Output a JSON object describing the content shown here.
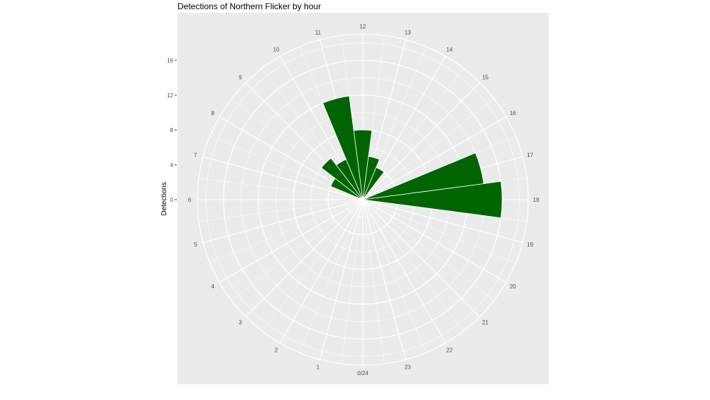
{
  "chart_data": {
    "type": "bar",
    "coord": "polar",
    "title": "Detections of Northern Flicker by hour",
    "xlabel": "",
    "ylabel": "Detections",
    "bar_color": "#006400",
    "panel_color": "#ebebeb",
    "grid_color": "#ffffff",
    "grid": true,
    "ylim": [
      0,
      19
    ],
    "y_ticks": [
      0,
      4,
      8,
      12,
      16
    ],
    "y_tick_labels": [
      "0",
      "4",
      "8",
      "12",
      "16"
    ],
    "hour_labels": [
      "0/24",
      "1",
      "2",
      "3",
      "4",
      "5",
      "6",
      "7",
      "8",
      "9",
      "10",
      "11",
      "12",
      "13",
      "14",
      "15",
      "16",
      "17",
      "18",
      "19",
      "20",
      "21",
      "22",
      "23"
    ],
    "categories": [
      0,
      1,
      2,
      3,
      4,
      5,
      6,
      7,
      8,
      9,
      10,
      11,
      12,
      13,
      14,
      15,
      16,
      17,
      18,
      19,
      20,
      21,
      22,
      23
    ],
    "values": [
      0,
      0,
      0,
      0,
      0,
      0,
      0,
      0,
      4,
      6,
      5,
      12,
      8,
      5,
      4,
      0,
      0,
      14,
      16,
      0,
      0,
      0,
      0,
      0
    ]
  }
}
